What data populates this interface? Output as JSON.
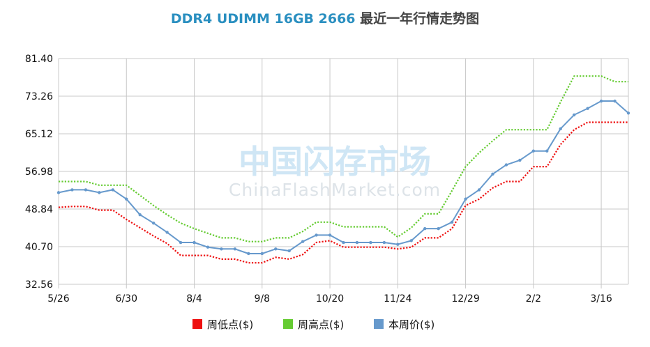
{
  "title": {
    "part1": "DDR4 UDIMM 16GB 2666",
    "part2": "最近一年行情走势图"
  },
  "watermark": {
    "cn": "中国闪存市场",
    "en": "ChinaFlashMarket.com"
  },
  "colors": {
    "low": "#ee1111",
    "high": "#66cc33",
    "price": "#6699cc",
    "grid": "#c8c8c8"
  },
  "chart_data": {
    "type": "line",
    "x_tick_labels": [
      "5/26",
      "6/30",
      "8/4",
      "9/8",
      "10/20",
      "11/24",
      "12/29",
      "2/2",
      "3/16"
    ],
    "y_tick_labels": [
      "81.40",
      "73.26",
      "65.12",
      "56.98",
      "48.84",
      "40.70",
      "32.56"
    ],
    "ylim": [
      32.56,
      81.4
    ],
    "grid": true,
    "legend_position": "bottom",
    "series": [
      {
        "name": "周低点($)",
        "style": "dotted",
        "values": [
          49.2,
          49.4,
          49.4,
          48.6,
          48.6,
          46.6,
          44.8,
          43.0,
          41.4,
          38.8,
          38.8,
          38.8,
          38.0,
          38.0,
          37.2,
          37.2,
          38.4,
          38.0,
          39.0,
          41.6,
          42.0,
          40.6,
          40.6,
          40.6,
          40.6,
          40.2,
          40.6,
          42.6,
          42.6,
          44.6,
          49.6,
          51.0,
          53.4,
          54.8,
          54.8,
          58.0,
          58.0,
          62.8,
          66.0,
          67.6,
          67.6,
          67.6,
          67.6
        ]
      },
      {
        "name": "周高点($)",
        "style": "dotted",
        "values": [
          54.8,
          54.8,
          54.8,
          54.0,
          54.0,
          54.0,
          51.8,
          49.6,
          47.6,
          45.8,
          44.6,
          43.6,
          42.6,
          42.6,
          41.8,
          41.8,
          42.6,
          42.6,
          44.0,
          46.0,
          46.0,
          45.0,
          45.0,
          45.0,
          45.0,
          42.8,
          44.8,
          47.8,
          47.8,
          52.8,
          58.0,
          61.0,
          63.6,
          66.0,
          66.0,
          66.0,
          66.0,
          72.0,
          77.6,
          77.6,
          77.6,
          76.4,
          76.4
        ]
      },
      {
        "name": "本周价($)",
        "style": "solid",
        "values": [
          52.4,
          53.0,
          53.0,
          52.4,
          53.0,
          51.0,
          47.6,
          45.8,
          43.8,
          41.6,
          41.6,
          40.6,
          40.2,
          40.2,
          39.2,
          39.2,
          40.2,
          39.8,
          41.8,
          43.2,
          43.2,
          41.6,
          41.6,
          41.6,
          41.6,
          41.2,
          42.0,
          44.6,
          44.6,
          46.0,
          51.0,
          53.0,
          56.4,
          58.4,
          59.4,
          61.4,
          61.4,
          66.2,
          69.2,
          70.6,
          72.2,
          72.2,
          69.6
        ]
      }
    ]
  }
}
